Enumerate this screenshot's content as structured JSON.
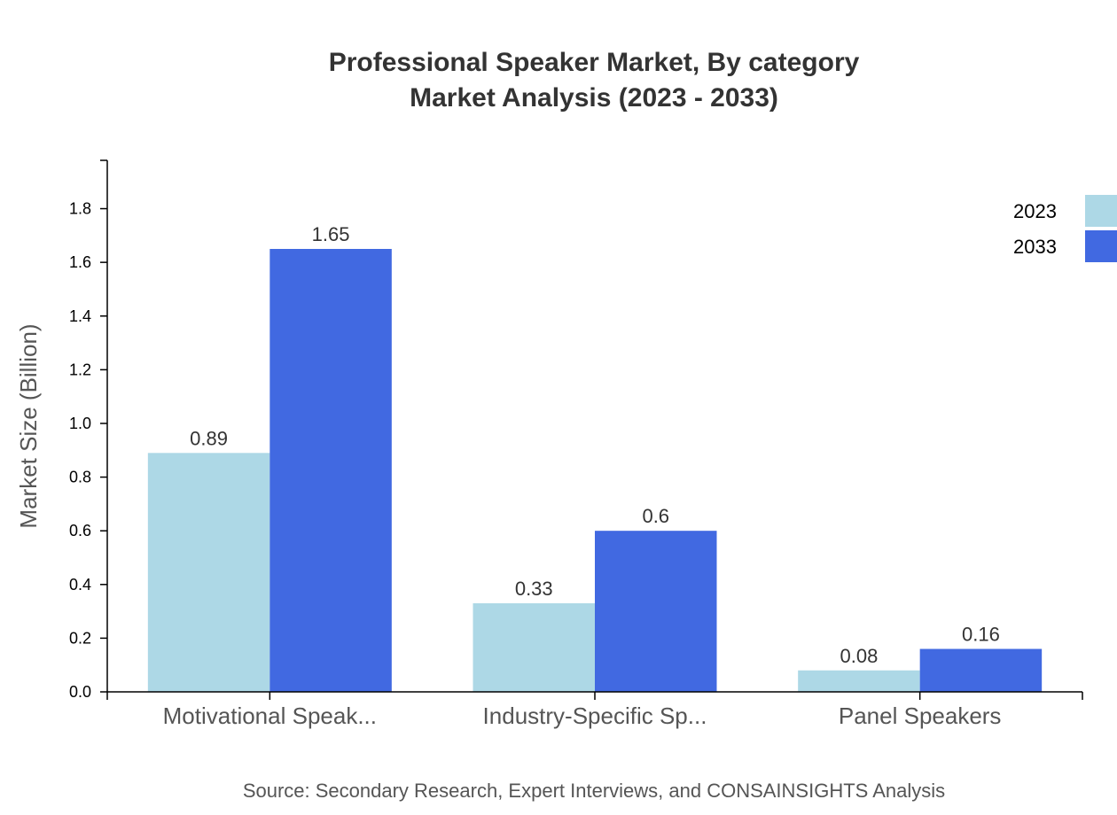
{
  "chart_data": {
    "type": "bar",
    "title": "Professional Speaker Market, By category",
    "subtitle": "Market Analysis (2023 - 2033)",
    "xlabel": "",
    "ylabel": "Market Size (Billion)",
    "ylim": [
      0,
      1.98
    ],
    "yticks": [
      "0.0",
      "0.2",
      "0.4",
      "0.6",
      "0.8",
      "1.0",
      "1.2",
      "1.4",
      "1.6",
      "1.8"
    ],
    "categories": [
      "Motivational Speak...",
      "Industry-Specific Sp...",
      "Panel Speakers"
    ],
    "series": [
      {
        "name": "2023",
        "values": [
          0.89,
          0.33,
          0.08
        ],
        "color": "#ADD8E6"
      },
      {
        "name": "2033",
        "values": [
          1.65,
          0.6,
          0.16
        ],
        "color": "#4169E1"
      }
    ],
    "value_labels": [
      [
        "0.89",
        "0.33",
        "0.08"
      ],
      [
        "1.65",
        "0.6",
        "0.16"
      ]
    ],
    "legend_position": "top-right",
    "grid": false,
    "source": "Source: Secondary Research, Expert Interviews, and CONSAINSIGHTS Analysis"
  }
}
